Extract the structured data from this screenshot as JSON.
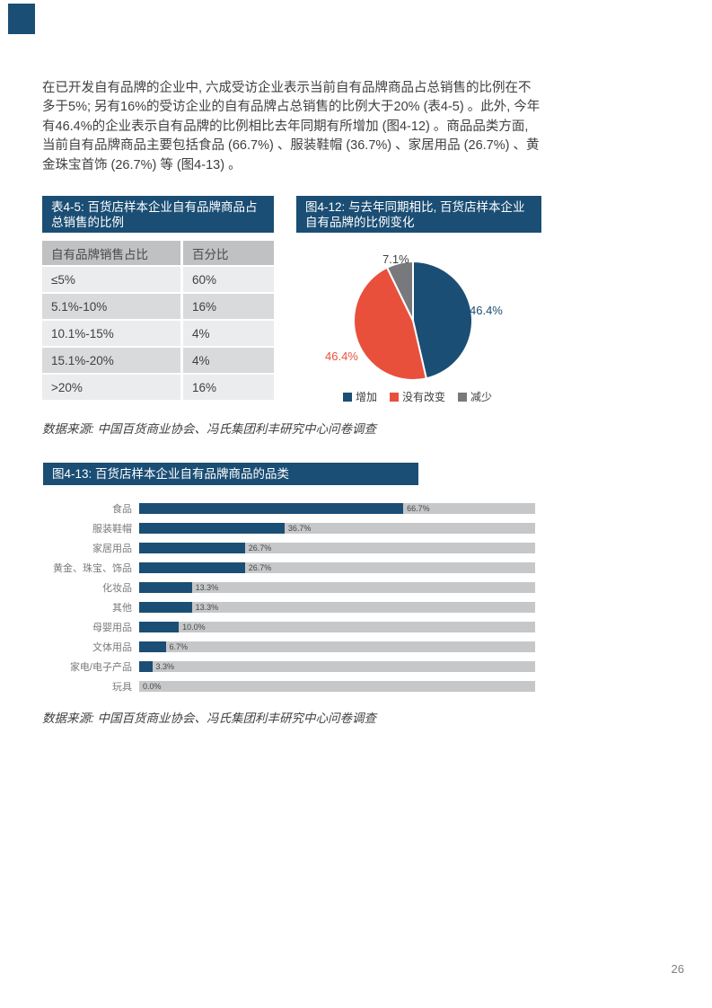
{
  "page": {
    "number": "26"
  },
  "colors": {
    "navy": "#1b4e74",
    "red": "#e8503c",
    "slice_gray": "#77797c",
    "track_gray": "#c6c7c9",
    "table_header_gray": "#bfc1c3",
    "row_light": "#ebeced",
    "row_dark": "#d9dadc",
    "text": "#3f3f3f"
  },
  "intro_paragraph": "在已开发自有品牌的企业中, 六成受访企业表示当前自有品牌商品占总销售的比例在不多于5%; 另有16%的受访企业的自有品牌占总销售的比例大于20% (表4-5) 。此外, 今年有46.4%的企业表示自有品牌的比例相比去年同期有所增加 (图4-12) 。商品品类方面, 当前自有品牌商品主要包括食品 (66.7%) 、服装鞋帽 (36.7%) 、家居用品 (26.7%) 、黄金珠宝首饰 (26.7%) 等 (图4-13) 。",
  "table45": {
    "title": "表4-5: 百货店样本企业自有品牌商品占总销售的比例",
    "columns": [
      "自有品牌销售占比",
      "百分比"
    ],
    "rows": [
      [
        "≤5%",
        "60%"
      ],
      [
        "5.1%-10%",
        "16%"
      ],
      [
        "10.1%-15%",
        "4%"
      ],
      [
        "15.1%-20%",
        "4%"
      ],
      [
        ">20%",
        "16%"
      ]
    ]
  },
  "source_note": "数据来源: 中国百货商业协会、冯氏集团利丰研究中心问卷调查",
  "chart_data": [
    {
      "type": "pie",
      "title": "图4-12: 与去年同期相比, 百货店样本企业自有品牌的比例变化",
      "labels": [
        "增加",
        "没有改变",
        "减少"
      ],
      "values": [
        46.4,
        46.4,
        7.1
      ],
      "value_labels": [
        "46.4%",
        "46.4%",
        "7.1%"
      ],
      "colors": [
        "#1b4e74",
        "#e8503c",
        "#77797c"
      ],
      "start_angle_deg": 0,
      "direction": "clockwise",
      "legend_position": "bottom"
    },
    {
      "type": "bar",
      "orientation": "horizontal",
      "title": "图4-13: 百货店样本企业自有品牌商品的品类",
      "categories": [
        "食品",
        "服装鞋帽",
        "家居用品",
        "黄金、珠宝、饰品",
        "化妆品",
        "其他",
        "母婴用品",
        "文体用品",
        "家电/电子产品",
        "玩具"
      ],
      "values": [
        66.7,
        36.7,
        26.7,
        26.7,
        13.3,
        13.3,
        10.0,
        6.7,
        3.3,
        0.0
      ],
      "value_labels": [
        "66.7%",
        "36.7%",
        "26.7%",
        "26.7%",
        "13.3%",
        "13.3%",
        "10.0%",
        "6.7%",
        "3.3%",
        "0.0%"
      ],
      "xlim": [
        0,
        100
      ],
      "bar_color": "#1b4e74",
      "track_color": "#c6c7c9"
    }
  ]
}
